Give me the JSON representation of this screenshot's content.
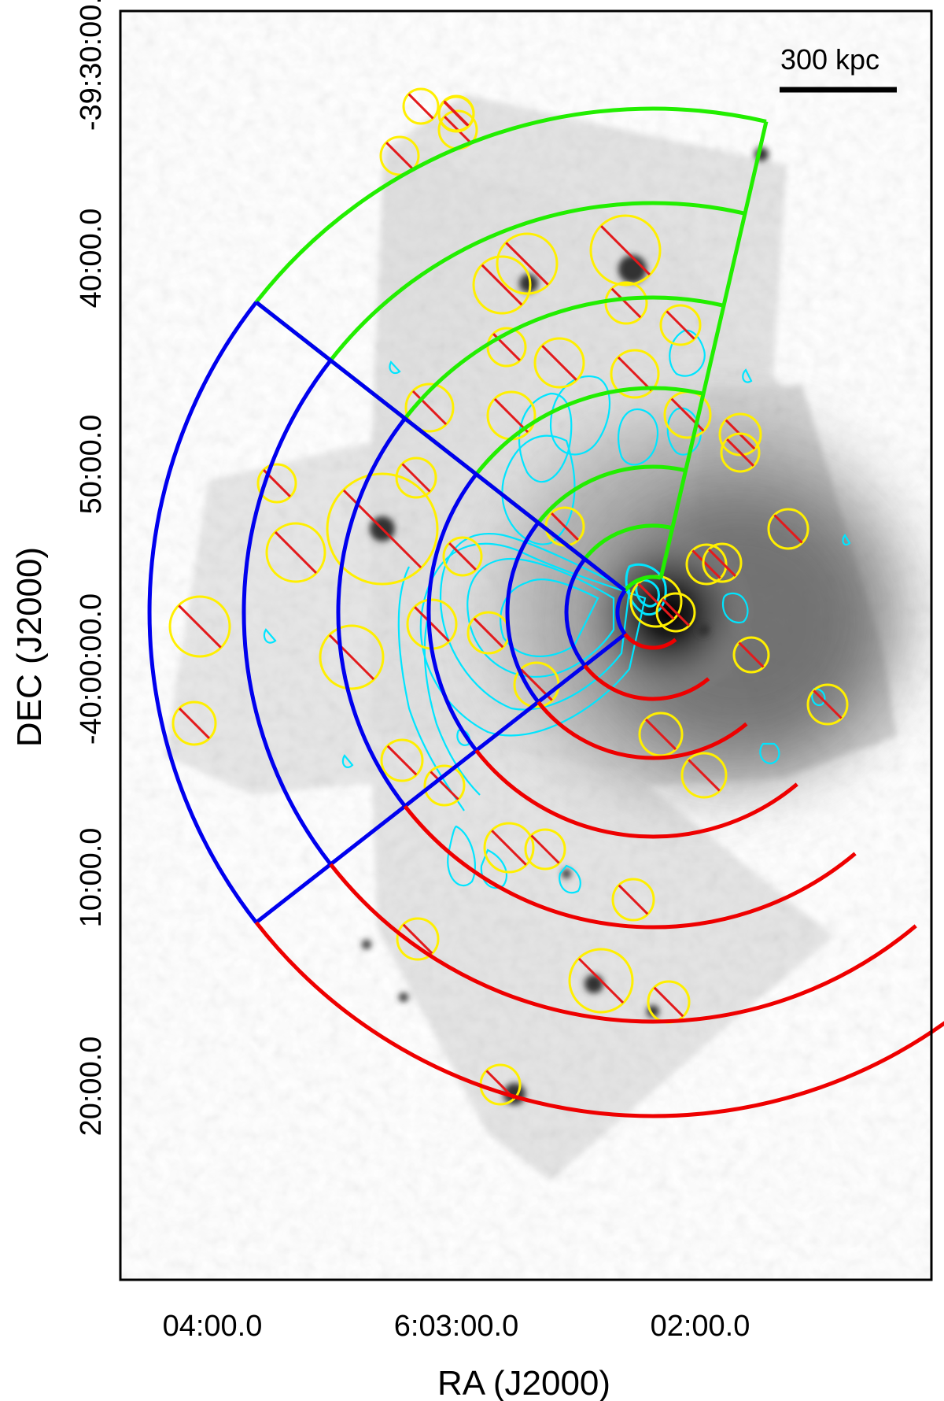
{
  "axes": {
    "xlabel": "RA (J2000)",
    "ylabel": "DEC (J2000)",
    "x_ticks": [
      "04:00.0",
      "6:03:00.0",
      "02:00.0"
    ],
    "y_ticks": [
      "-39:30:00.0",
      "40:00.0",
      "50:00.0",
      "-40:00:00.0",
      "10:00.0",
      "20:00.0"
    ]
  },
  "scale_bar": {
    "label": "300 kpc"
  },
  "colors": {
    "background_image": "grayscale",
    "contours": "#00e5ff",
    "excluded_sources": "#ffef00",
    "exclusion_slash": "#e31a1c",
    "sector_north": "#22ee00",
    "sector_east": "#0000ee",
    "sector_south": "#ee0000",
    "frame": "#000000"
  },
  "sectors": [
    {
      "name": "north",
      "color": "#22ee00",
      "annuli": 6
    },
    {
      "name": "east",
      "color": "#0000ee",
      "annuli": 6
    },
    {
      "name": "south",
      "color": "#ee0000",
      "annuli": 7
    }
  ]
}
